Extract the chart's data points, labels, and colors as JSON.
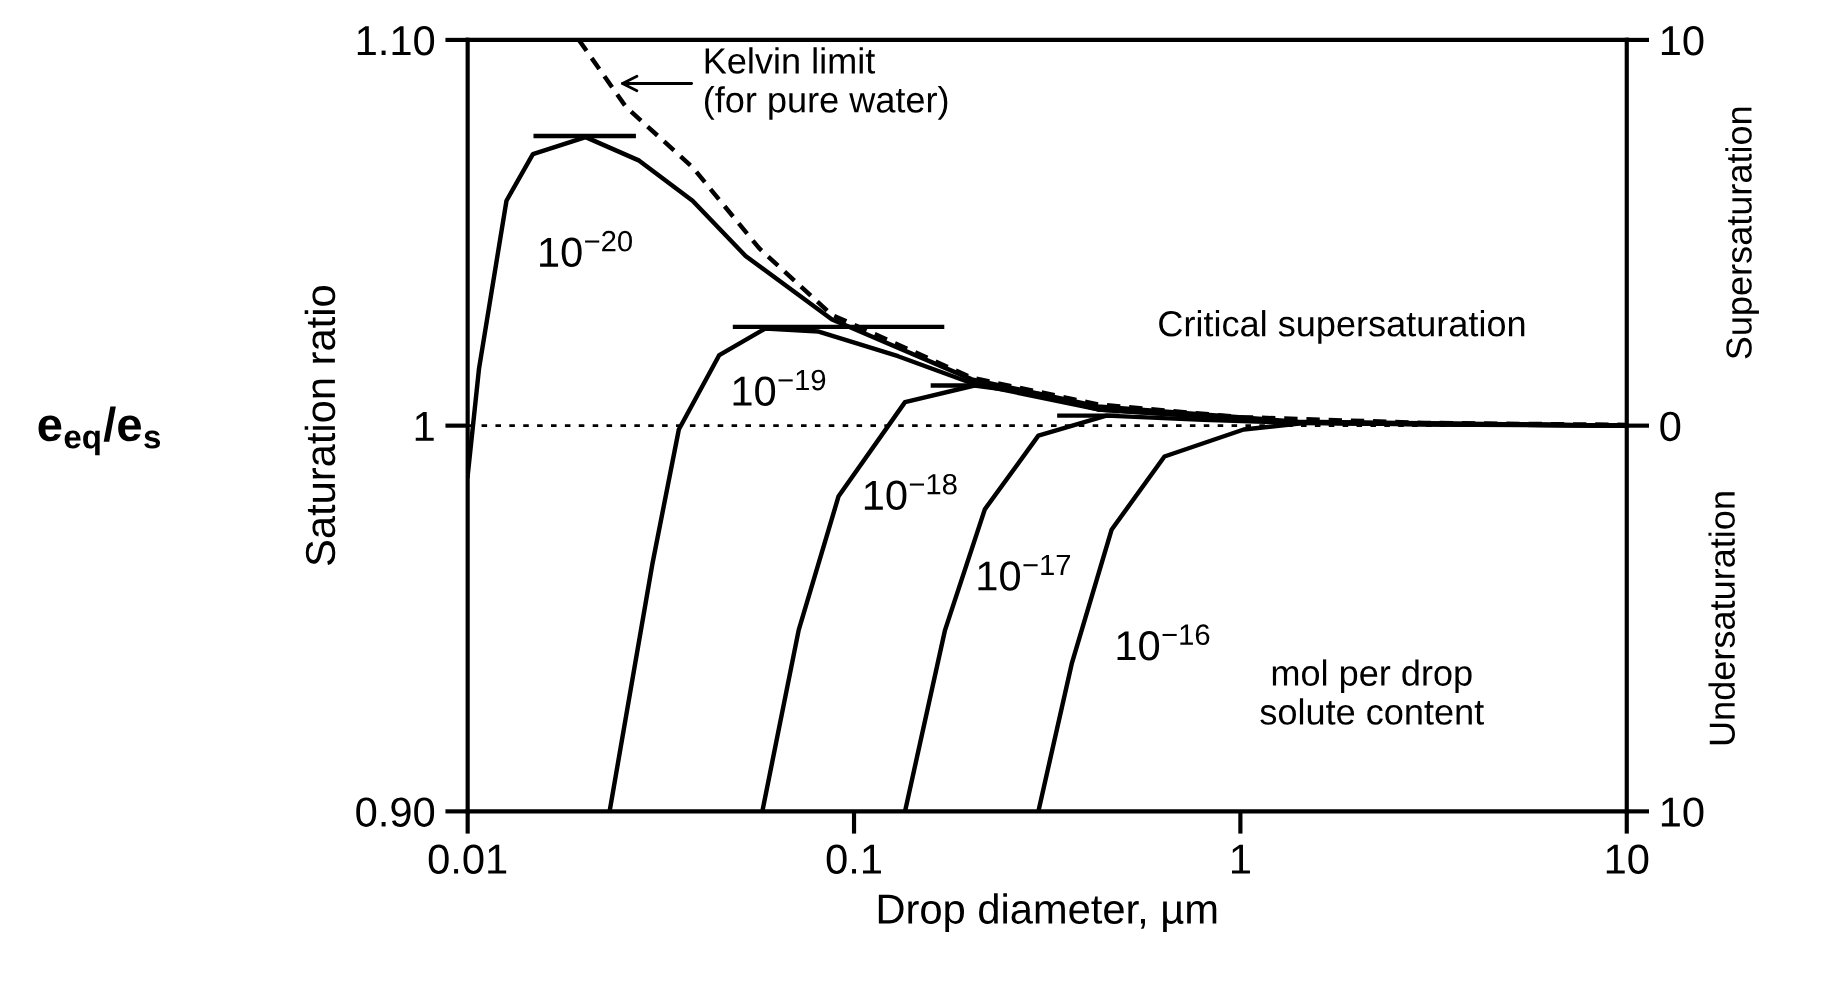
{
  "chart_data": {
    "type": "line",
    "xlabel": "Drop diameter, µm",
    "ylabel": "Saturation ratio",
    "y2label": "Supersaturation",
    "log": "x",
    "grid": false,
    "xlim": [
      0.01,
      10
    ],
    "xticks": [
      0.01,
      0.1,
      1,
      10
    ],
    "ylim": [
      0.9,
      1.1
    ],
    "yticks": [
      {
        "value": 0.9,
        "label": "0.90"
      },
      1,
      {
        "value": 1.1,
        "label": "1.10"
      }
    ],
    "y2lim": [
      -10,
      10
    ],
    "y2ticks": [
      {
        "value": -10,
        "label": "10"
      },
      0,
      10
    ],
    "ref_lines": [
      {
        "axis": "y",
        "value": 1,
        "line_style": "dotted",
        "color": "#000000"
      }
    ],
    "series": [
      {
        "color": "#000000",
        "line_style": "dashed",
        "x": [
          0.0194,
          0.0257,
          0.0382,
          0.0568,
          0.0877,
          0.2018,
          0.428,
          1,
          3,
          10
        ],
        "values": [
          1.1,
          1.0826,
          1.067,
          1.046,
          1.0287,
          1.0124,
          1.0055,
          1.0022,
          1.0007,
          1.0002
        ]
      },
      {
        "color": "#000000",
        "x": [
          0.01,
          0.0107,
          0.0126,
          0.01475,
          0.0202,
          0.0278,
          0.0382,
          0.0524,
          0.0877,
          0.2018,
          0.428,
          1.41,
          10
        ],
        "values": [
          0.987,
          1.0148,
          1.0583,
          1.0704,
          1.0748,
          1.0687,
          1.0583,
          1.044,
          1.0275,
          1.012,
          1.005,
          1.001,
          1.0
        ]
      },
      {
        "color": "#000000",
        "x": [
          0.0233,
          0.0301,
          0.0352,
          0.0448,
          0.059,
          0.081,
          0.13,
          0.2018,
          0.428,
          1.41,
          10
        ],
        "values": [
          0.9,
          0.9644,
          0.999,
          1.0183,
          1.0252,
          1.0244,
          1.018,
          1.011,
          1.0042,
          1.0008,
          1.0
        ]
      },
      {
        "color": "#000000",
        "x": [
          0.0579,
          0.0719,
          0.0912,
          0.1355,
          0.205,
          0.3,
          0.428,
          1.41,
          10
        ],
        "values": [
          0.9,
          0.947,
          0.9817,
          1.0061,
          1.0104,
          1.0082,
          1.0042,
          1.0008,
          1.0
        ]
      },
      {
        "color": "#000000",
        "x": [
          0.1355,
          0.172,
          0.218,
          0.3,
          0.45,
          0.8,
          1.41,
          10
        ],
        "values": [
          0.9,
          0.947,
          0.9783,
          0.9974,
          1.0026,
          1.0015,
          1.0007,
          1.0
        ]
      },
      {
        "color": "#000000",
        "x": [
          0.3,
          0.366,
          0.464,
          0.636,
          1.02,
          1.5,
          3,
          10
        ],
        "values": [
          0.9,
          0.9383,
          0.973,
          0.992,
          0.999,
          1.0008,
          1.0003,
          1.0
        ]
      },
      {
        "color": "#000000",
        "x": [
          0.015,
          0.0269
        ],
        "values": [
          1.0751,
          1.0751
        ]
      },
      {
        "color": "#000000",
        "x": [
          0.0492,
          0.169
        ],
        "values": [
          1.0256,
          1.0256
        ]
      },
      {
        "color": "#000000",
        "x": [
          0.16,
          0.235
        ],
        "values": [
          1.0104,
          1.0104
        ]
      },
      {
        "color": "#000000",
        "x": [
          0.34,
          0.48
        ],
        "values": [
          1.0026,
          1.0026
        ]
      }
    ],
    "annotations": [
      "e$_{eq}$/e$_{s}$",
      "Undersaturation",
      "mol per drop\nsolute content",
      {
        "text": "Kelvin limit\n(for pure water)",
        "x": 0.0247,
        "y": 1.0887
      },
      "Critical supersaturation",
      "10$^{−20}$",
      "10$^{−19}$",
      "10$^{−18}$",
      "10$^{−17}$",
      "10$^{−16}$"
    ]
  }
}
